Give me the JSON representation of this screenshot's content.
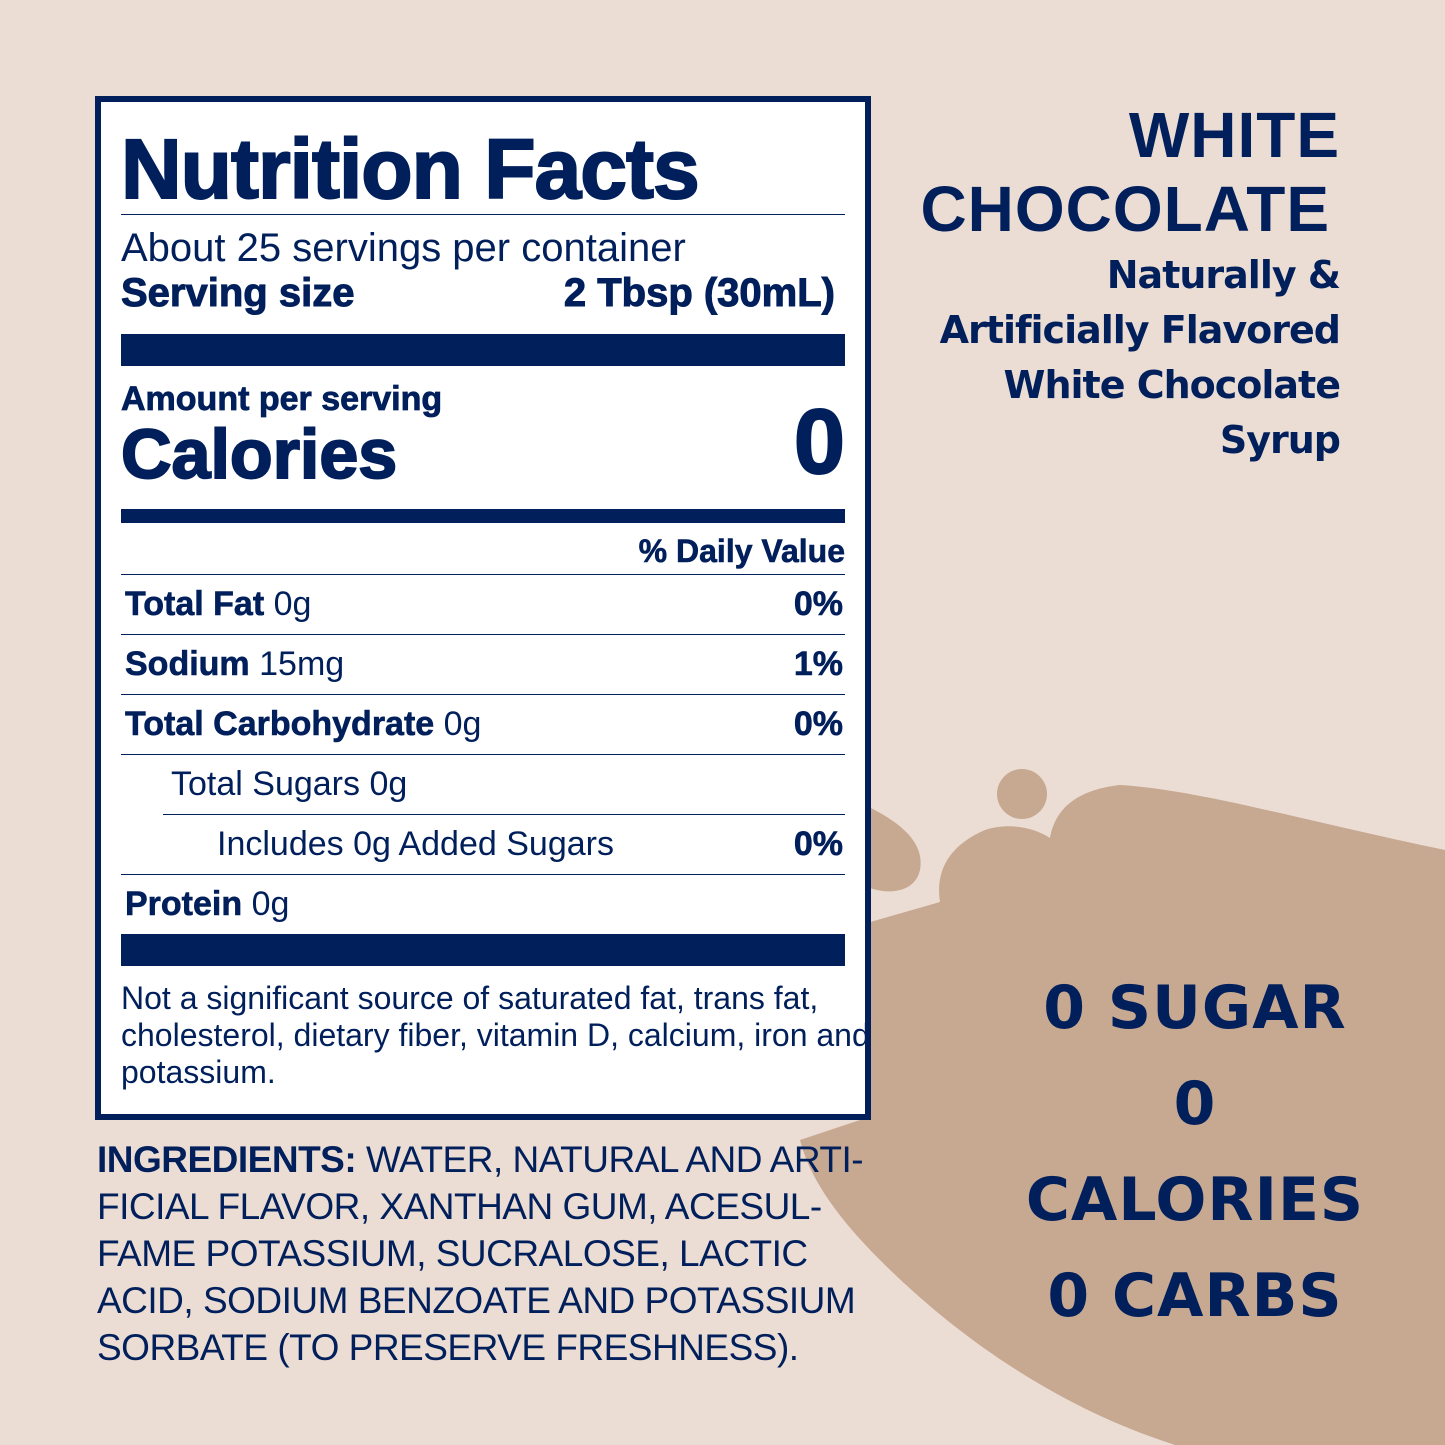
{
  "colors": {
    "background": "#ebddd4",
    "splash": "#c7a891",
    "navy": "#001f5b"
  },
  "label": {
    "title": "Nutrition Facts",
    "servings": "About 25 servings per container",
    "serving_size_label": "Serving size",
    "serving_size_value": "2 Tbsp (30mL)",
    "amount_per_serving": "Amount per serving",
    "calories_label": "Calories",
    "calories_value": "0",
    "daily_value_header": "% Daily Value",
    "rows": [
      {
        "name": "Total Fat",
        "amount": "0g",
        "dv": "0%"
      },
      {
        "name": "Sodium",
        "amount": "15mg",
        "dv": "1%"
      },
      {
        "name": "Total Carbohydrate",
        "amount": "0g",
        "dv": "0%"
      },
      {
        "name": "Total Sugars 0g",
        "dv": ""
      },
      {
        "name": "Includes 0g Added Sugars",
        "dv": "0%"
      },
      {
        "name": "Protein",
        "amount": "0g",
        "dv": ""
      }
    ],
    "footnote": "Not a significant source of saturated fat, trans fat, cholesterol, dietary fiber, vitamin D, calcium, iron and potassium."
  },
  "ingredients": {
    "label": "INGREDIENTS:",
    "text": " WATER, NATURAL AND ARTI-FICIAL FLAVOR, XANTHAN GUM, ACESUL-FAME POTASSIUM, SUCRALOSE, LACTIC ACID, SODIUM BENZOATE AND POTASSIUM SORBATE (TO PRESERVE FRESHNESS)."
  },
  "product": {
    "flavor_line1": "WHITE",
    "flavor_line2": "CHOCOLATE",
    "desc": [
      "Naturally &",
      "Artificially Flavored",
      "White Chocolate",
      "Syrup"
    ]
  },
  "claims": [
    "0 SUGAR",
    "0 CALORIES",
    "0 CARBS"
  ]
}
